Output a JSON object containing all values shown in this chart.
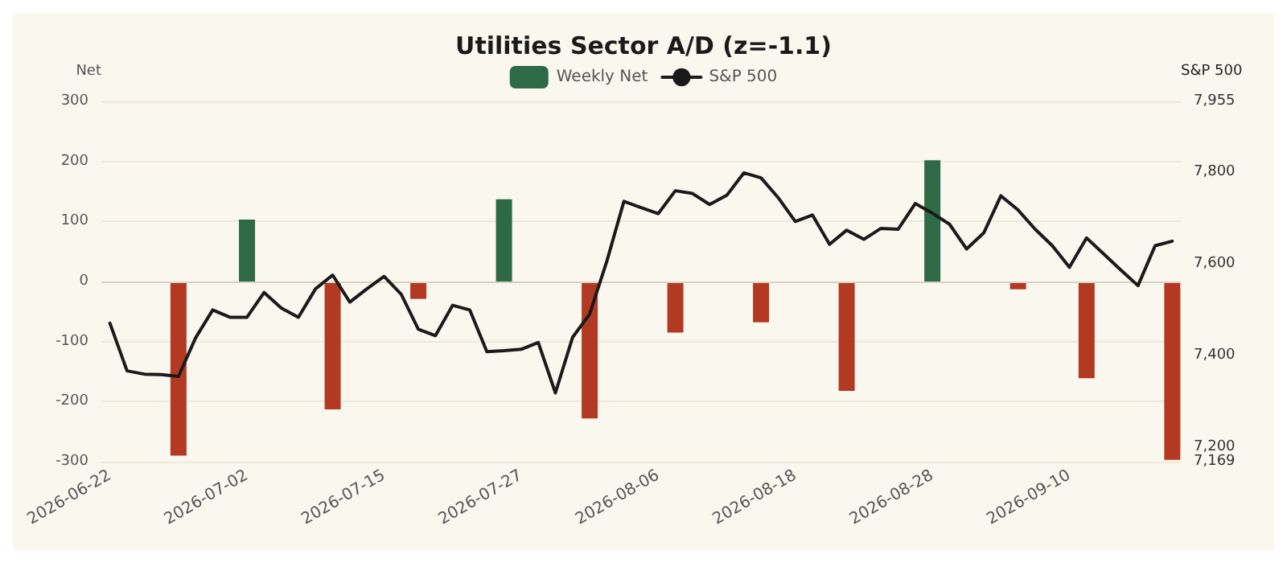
{
  "chart_data": {
    "type": "bar",
    "title": "Utilities Sector A/D (z=-1.1)",
    "ylabel": "Net",
    "y2label": "S&P 500",
    "categories": [
      "2026-06-22",
      null,
      null,
      null,
      null,
      null,
      null,
      null,
      "2026-07-02",
      null,
      null,
      null,
      null,
      null,
      null,
      null,
      "2026-07-15",
      null,
      null,
      null,
      null,
      null,
      null,
      null,
      "2026-07-27",
      null,
      null,
      null,
      null,
      null,
      null,
      null,
      "2026-08-06",
      null,
      null,
      null,
      null,
      null,
      null,
      null,
      "2026-08-18",
      null,
      null,
      null,
      null,
      null,
      null,
      null,
      "2026-08-28",
      null,
      null,
      null,
      null,
      null,
      null,
      null,
      "2026-09-10",
      null,
      null,
      null,
      null,
      null,
      null
    ],
    "series": [
      {
        "name": "Weekly Net",
        "color": "#2d6a45",
        "values": [
          null,
          null,
          null,
          null,
          -290,
          null,
          null,
          null,
          103,
          null,
          null,
          null,
          null,
          -213,
          null,
          null,
          null,
          null,
          -29,
          null,
          null,
          null,
          null,
          137,
          null,
          null,
          null,
          null,
          -228,
          null,
          null,
          null,
          null,
          -85,
          null,
          null,
          null,
          null,
          -68,
          null,
          null,
          null,
          null,
          -182,
          null,
          null,
          null,
          null,
          202,
          null,
          null,
          null,
          null,
          -13,
          null,
          null,
          null,
          -161,
          null,
          null,
          null,
          null,
          -297
        ],
        "colors": [
          null,
          null,
          null,
          null,
          "#b33a22",
          null,
          null,
          null,
          "#2d6a45",
          null,
          null,
          null,
          null,
          "#b33a22",
          null,
          null,
          null,
          null,
          "#b33a22",
          null,
          null,
          null,
          null,
          "#2d6a45",
          null,
          null,
          null,
          null,
          "#b33a22",
          null,
          null,
          null,
          null,
          "#b33a22",
          null,
          null,
          null,
          null,
          "#b33a22",
          null,
          null,
          null,
          null,
          "#b33a22",
          null,
          null,
          null,
          null,
          "#2d6a45",
          null,
          null,
          null,
          null,
          "#b33a22",
          null,
          null,
          null,
          "#b33a22",
          null,
          null,
          null,
          null,
          "#b33a22"
        ]
      },
      {
        "name": "S&P 500",
        "type": "line",
        "axis": "y2",
        "color": "#1a1a1a",
        "values": [
          7471,
          7367,
          7360,
          7359,
          7355,
          7439,
          7500,
          7484,
          7484,
          7538,
          7504,
          7484,
          7546,
          7576,
          7517,
          7546,
          7573,
          7534,
          7458,
          7444,
          7510,
          7500,
          7409,
          7411,
          7414,
          7429,
          7319,
          7440,
          7491,
          7606,
          7737,
          7723,
          7710,
          7760,
          7754,
          7730,
          7750,
          7799,
          7788,
          7745,
          7693,
          7707,
          7643,
          7674,
          7654,
          7678,
          7676,
          7732,
          7711,
          7687,
          7633,
          7668,
          7749,
          7718,
          7676,
          7640,
          7593,
          7657,
          7622,
          7587,
          7553,
          7640,
          7650
        ]
      }
    ],
    "ylim": [
      -300,
      300
    ],
    "yticks": [
      -300,
      -200,
      -100,
      0,
      100,
      200,
      300
    ],
    "y2lim": [
      7169,
      7955
    ],
    "y2ticks": [
      {
        "value": 7169,
        "label": "7,169"
      },
      {
        "value": 7200,
        "label": "7,200"
      },
      {
        "value": 7400,
        "label": "7,400"
      },
      {
        "value": 7600,
        "label": "7,600"
      },
      {
        "value": 7800,
        "label": "7,800"
      },
      {
        "value": 7955,
        "label": "7,955"
      }
    ],
    "grid": "y",
    "legend": "top",
    "marker": "none",
    "line_style": "solid"
  }
}
